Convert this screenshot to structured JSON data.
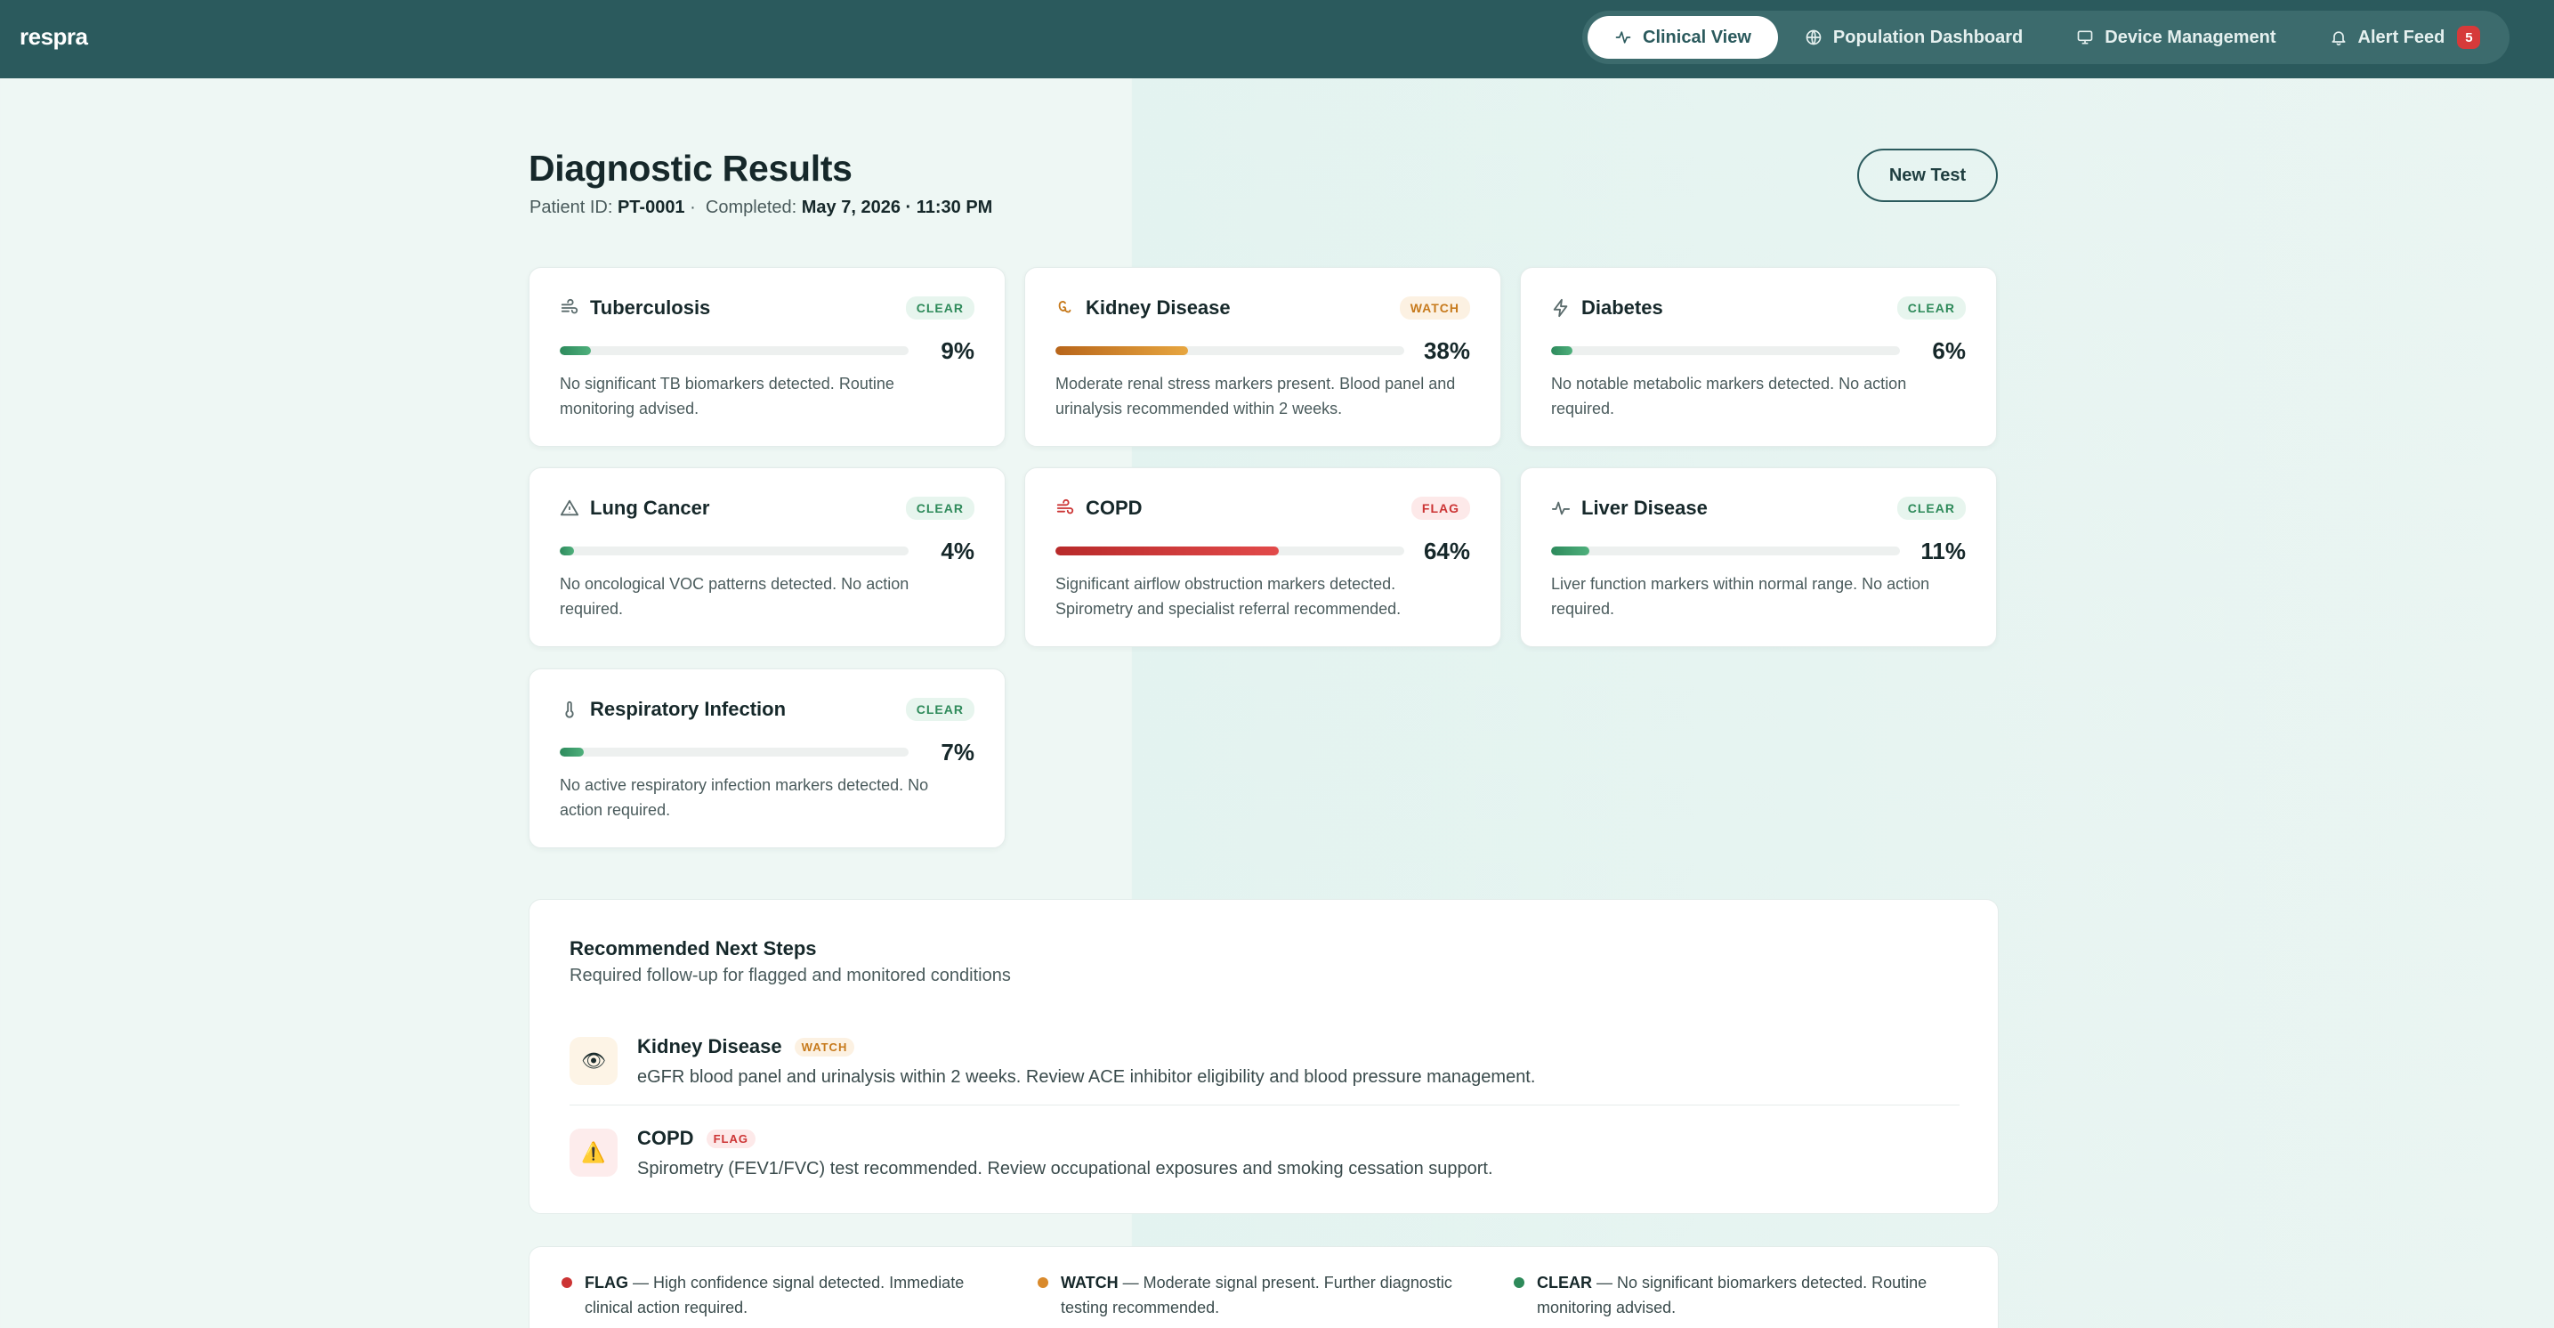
{
  "app": {
    "logo": "respra",
    "nav": [
      {
        "label": "Clinical View",
        "icon": "activity-icon",
        "active": true
      },
      {
        "label": "Population Dashboard",
        "icon": "globe-icon",
        "active": false
      },
      {
        "label": "Device Management",
        "icon": "monitor-icon",
        "active": false
      },
      {
        "label": "Alert Feed",
        "icon": "bell-icon",
        "active": false,
        "badge": "5"
      }
    ]
  },
  "header": {
    "title": "Diagnostic Results",
    "patient_label": "Patient ID:",
    "patient_id": "PT-0001",
    "sep": "·",
    "completed_label": "Completed:",
    "completed_value": "May 7, 2026 · 11:30 PM",
    "new_test_label": "New Test"
  },
  "conditions": [
    {
      "name": "Tuberculosis",
      "icon": "wind-icon",
      "status": "CLEAR",
      "level": "clear",
      "value": 9,
      "percent": "9%",
      "description": "No significant TB biomarkers detected. Routine monitoring advised."
    },
    {
      "name": "Kidney Disease",
      "icon": "kidney-icon",
      "status": "WATCH",
      "level": "watch",
      "value": 38,
      "percent": "38%",
      "description": "Moderate renal stress markers present. Blood panel and urinalysis recommended within 2 weeks."
    },
    {
      "name": "Diabetes",
      "icon": "zap-icon",
      "status": "CLEAR",
      "level": "clear",
      "value": 6,
      "percent": "6%",
      "description": "No notable metabolic markers detected. No action required."
    },
    {
      "name": "Lung Cancer",
      "icon": "warning-triangle-icon",
      "status": "CLEAR",
      "level": "clear",
      "value": 4,
      "percent": "4%",
      "description": "No oncological VOC patterns detected. No action required."
    },
    {
      "name": "COPD",
      "icon": "wind-icon",
      "status": "FLAG",
      "level": "flag",
      "value": 64,
      "percent": "64%",
      "description": "Significant airflow obstruction markers detected. Spirometry and specialist referral recommended."
    },
    {
      "name": "Liver Disease",
      "icon": "pulse-icon",
      "status": "CLEAR",
      "level": "clear",
      "value": 11,
      "percent": "11%",
      "description": "Liver function markers within normal range. No action required."
    },
    {
      "name": "Respiratory Infection",
      "icon": "thermometer-icon",
      "status": "CLEAR",
      "level": "clear",
      "value": 7,
      "percent": "7%",
      "description": "No active respiratory infection markers detected. No action required."
    }
  ],
  "next_steps": {
    "title": "Recommended Next Steps",
    "subtitle": "Required follow-up for flagged and monitored conditions",
    "items": [
      {
        "name": "Kidney Disease",
        "status": "WATCH",
        "level": "watch",
        "icon": "eye-icon",
        "glyph": "👁",
        "description": "eGFR blood panel and urinalysis within 2 weeks. Review ACE inhibitor eligibility and blood pressure management."
      },
      {
        "name": "COPD",
        "status": "FLAG",
        "level": "flag",
        "icon": "warning-icon",
        "glyph": "⚠️",
        "description": "Spirometry (FEV1/FVC) test recommended. Review occupational exposures and smoking cessation support."
      }
    ]
  },
  "legend": [
    {
      "term": "FLAG",
      "text": " — High confidence signal detected. Immediate clinical action required.",
      "color": "#cc3434"
    },
    {
      "term": "WATCH",
      "text": " — Moderate signal present. Further diagnostic testing recommended.",
      "color": "#d98a2c"
    },
    {
      "term": "CLEAR",
      "text": " — No significant biomarkers detected. Routine monitoring advised.",
      "color": "#2e8a5a"
    }
  ]
}
